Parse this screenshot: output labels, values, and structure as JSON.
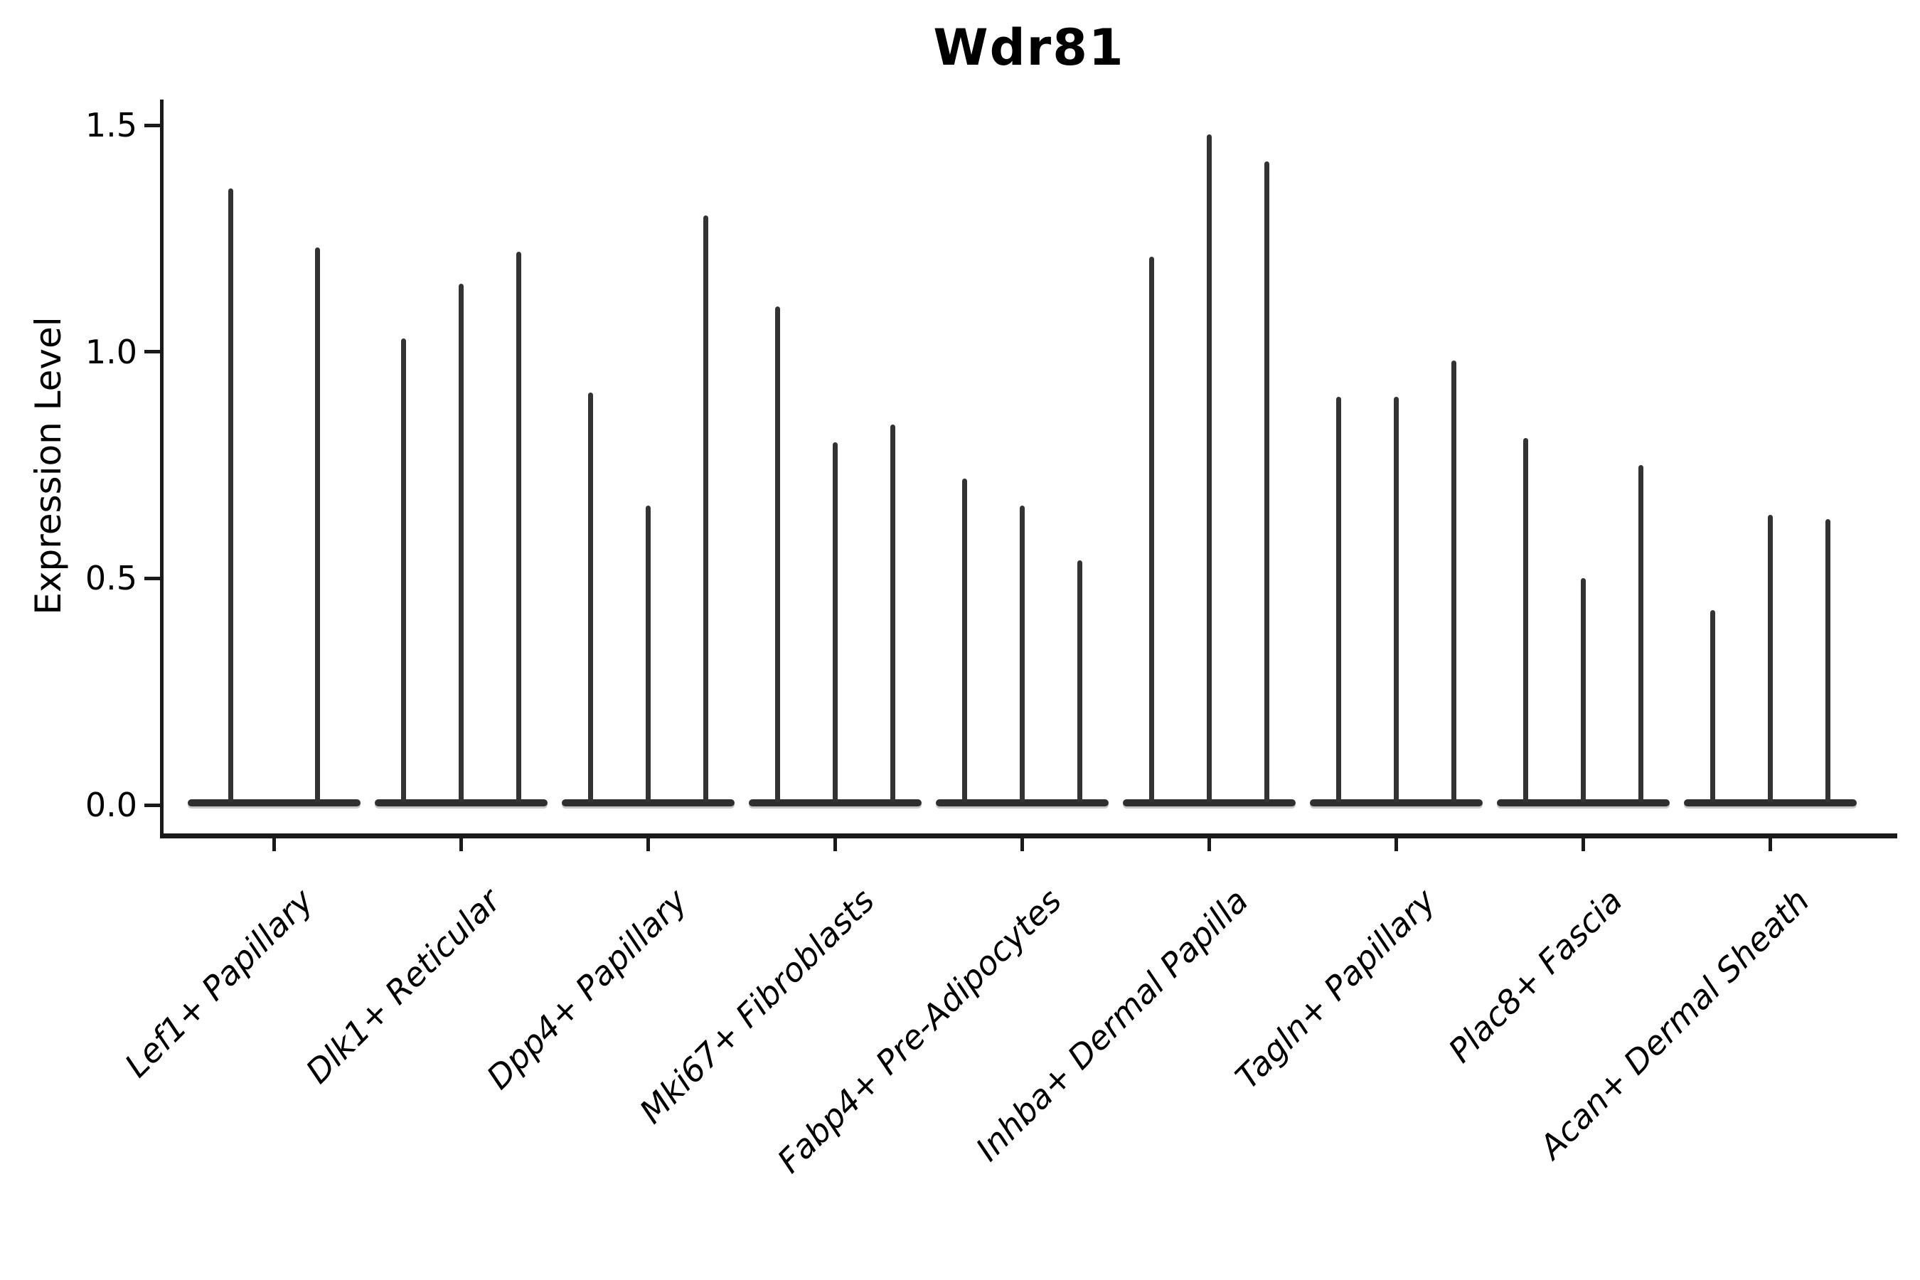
{
  "chart_data": {
    "type": "violin",
    "title": "Wdr81",
    "xlabel": "",
    "ylabel": "Expression Level",
    "ylim": [
      -0.07,
      1.56
    ],
    "yticks": [
      0.0,
      0.5,
      1.0,
      1.5
    ],
    "ytick_labels": [
      "0.0",
      "0.5",
      "1.0",
      "1.5"
    ],
    "grid": false,
    "legend_position": "none",
    "mark_style": "needle-thin violins: each violin collapses to a vertical spike from the 0 baseline up to its maximum expression value, with a flat dark base bar at 0",
    "categories": [
      "Lef1+ Papillary",
      "Dlk1+ Reticular",
      "Dpp4+ Papillary",
      "Mki67+ Fibroblasts",
      "Fabp4+ Pre-Adipocytes",
      "Inhba+ Dermal Papilla",
      "Tagln+ Papillary",
      "Plac8+ Fascia",
      "Acan+ Dermal Sheath"
    ],
    "groups": [
      {
        "label": "Lef1+ Papillary",
        "violin_maxima": [
          1.36,
          1.23
        ]
      },
      {
        "label": "Dlk1+ Reticular",
        "violin_maxima": [
          1.03,
          1.15,
          1.22
        ]
      },
      {
        "label": "Dpp4+ Papillary",
        "violin_maxima": [
          0.91,
          0.66,
          1.3
        ]
      },
      {
        "label": "Mki67+ Fibroblasts",
        "violin_maxima": [
          1.1,
          0.8,
          0.84
        ]
      },
      {
        "label": "Fabp4+ Pre-Adipocytes",
        "violin_maxima": [
          0.72,
          0.66,
          0.54
        ]
      },
      {
        "label": "Inhba+ Dermal Papilla",
        "violin_maxima": [
          1.21,
          1.48,
          1.42
        ]
      },
      {
        "label": "Tagln+ Papillary",
        "violin_maxima": [
          0.9,
          0.9,
          0.98
        ]
      },
      {
        "label": "Plac8+ Fascia",
        "violin_maxima": [
          0.81,
          0.5,
          0.75
        ]
      },
      {
        "label": "Acan+ Dermal Sheath",
        "violin_maxima": [
          0.43,
          0.64,
          0.63
        ]
      }
    ],
    "colors": {
      "violin": "#333333",
      "baseline_bar": "#2f2f2f",
      "axis": "#1a1a1a",
      "text": "#000000",
      "background": "#ffffff"
    }
  }
}
